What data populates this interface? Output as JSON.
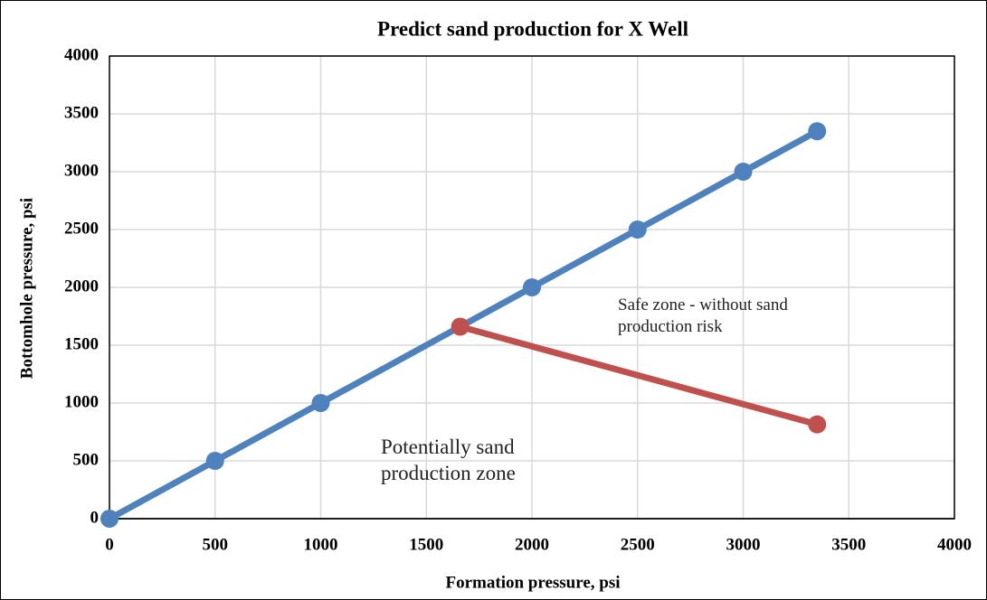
{
  "chart_data": {
    "type": "line",
    "title": "Predict sand production for X Well",
    "x_label": "Formation pressure, psi",
    "y_label": "Bottomhole pressure, psi",
    "series": [
      {
        "color": "#4f81bd",
        "x": [
          0,
          500,
          1000,
          2000,
          2500,
          3000,
          3350
        ],
        "values": [
          0,
          500,
          1000,
          2000,
          2500,
          3000,
          3350
        ]
      },
      {
        "color": "#c0504d",
        "x": [
          1660,
          3350
        ],
        "values": [
          1660,
          815
        ]
      }
    ],
    "xlim": [
      0,
      4000
    ],
    "xticks": [
      0,
      500,
      1000,
      1500,
      2000,
      2500,
      3000,
      3500,
      4000
    ],
    "ylim": [
      0,
      4000
    ],
    "yticks": [
      0,
      500,
      1000,
      1500,
      2000,
      2500,
      3000,
      3500,
      4000
    ],
    "grid": true,
    "annotations": [
      "Safe zone - without sand production risk",
      "Potentially sand production zone"
    ]
  }
}
